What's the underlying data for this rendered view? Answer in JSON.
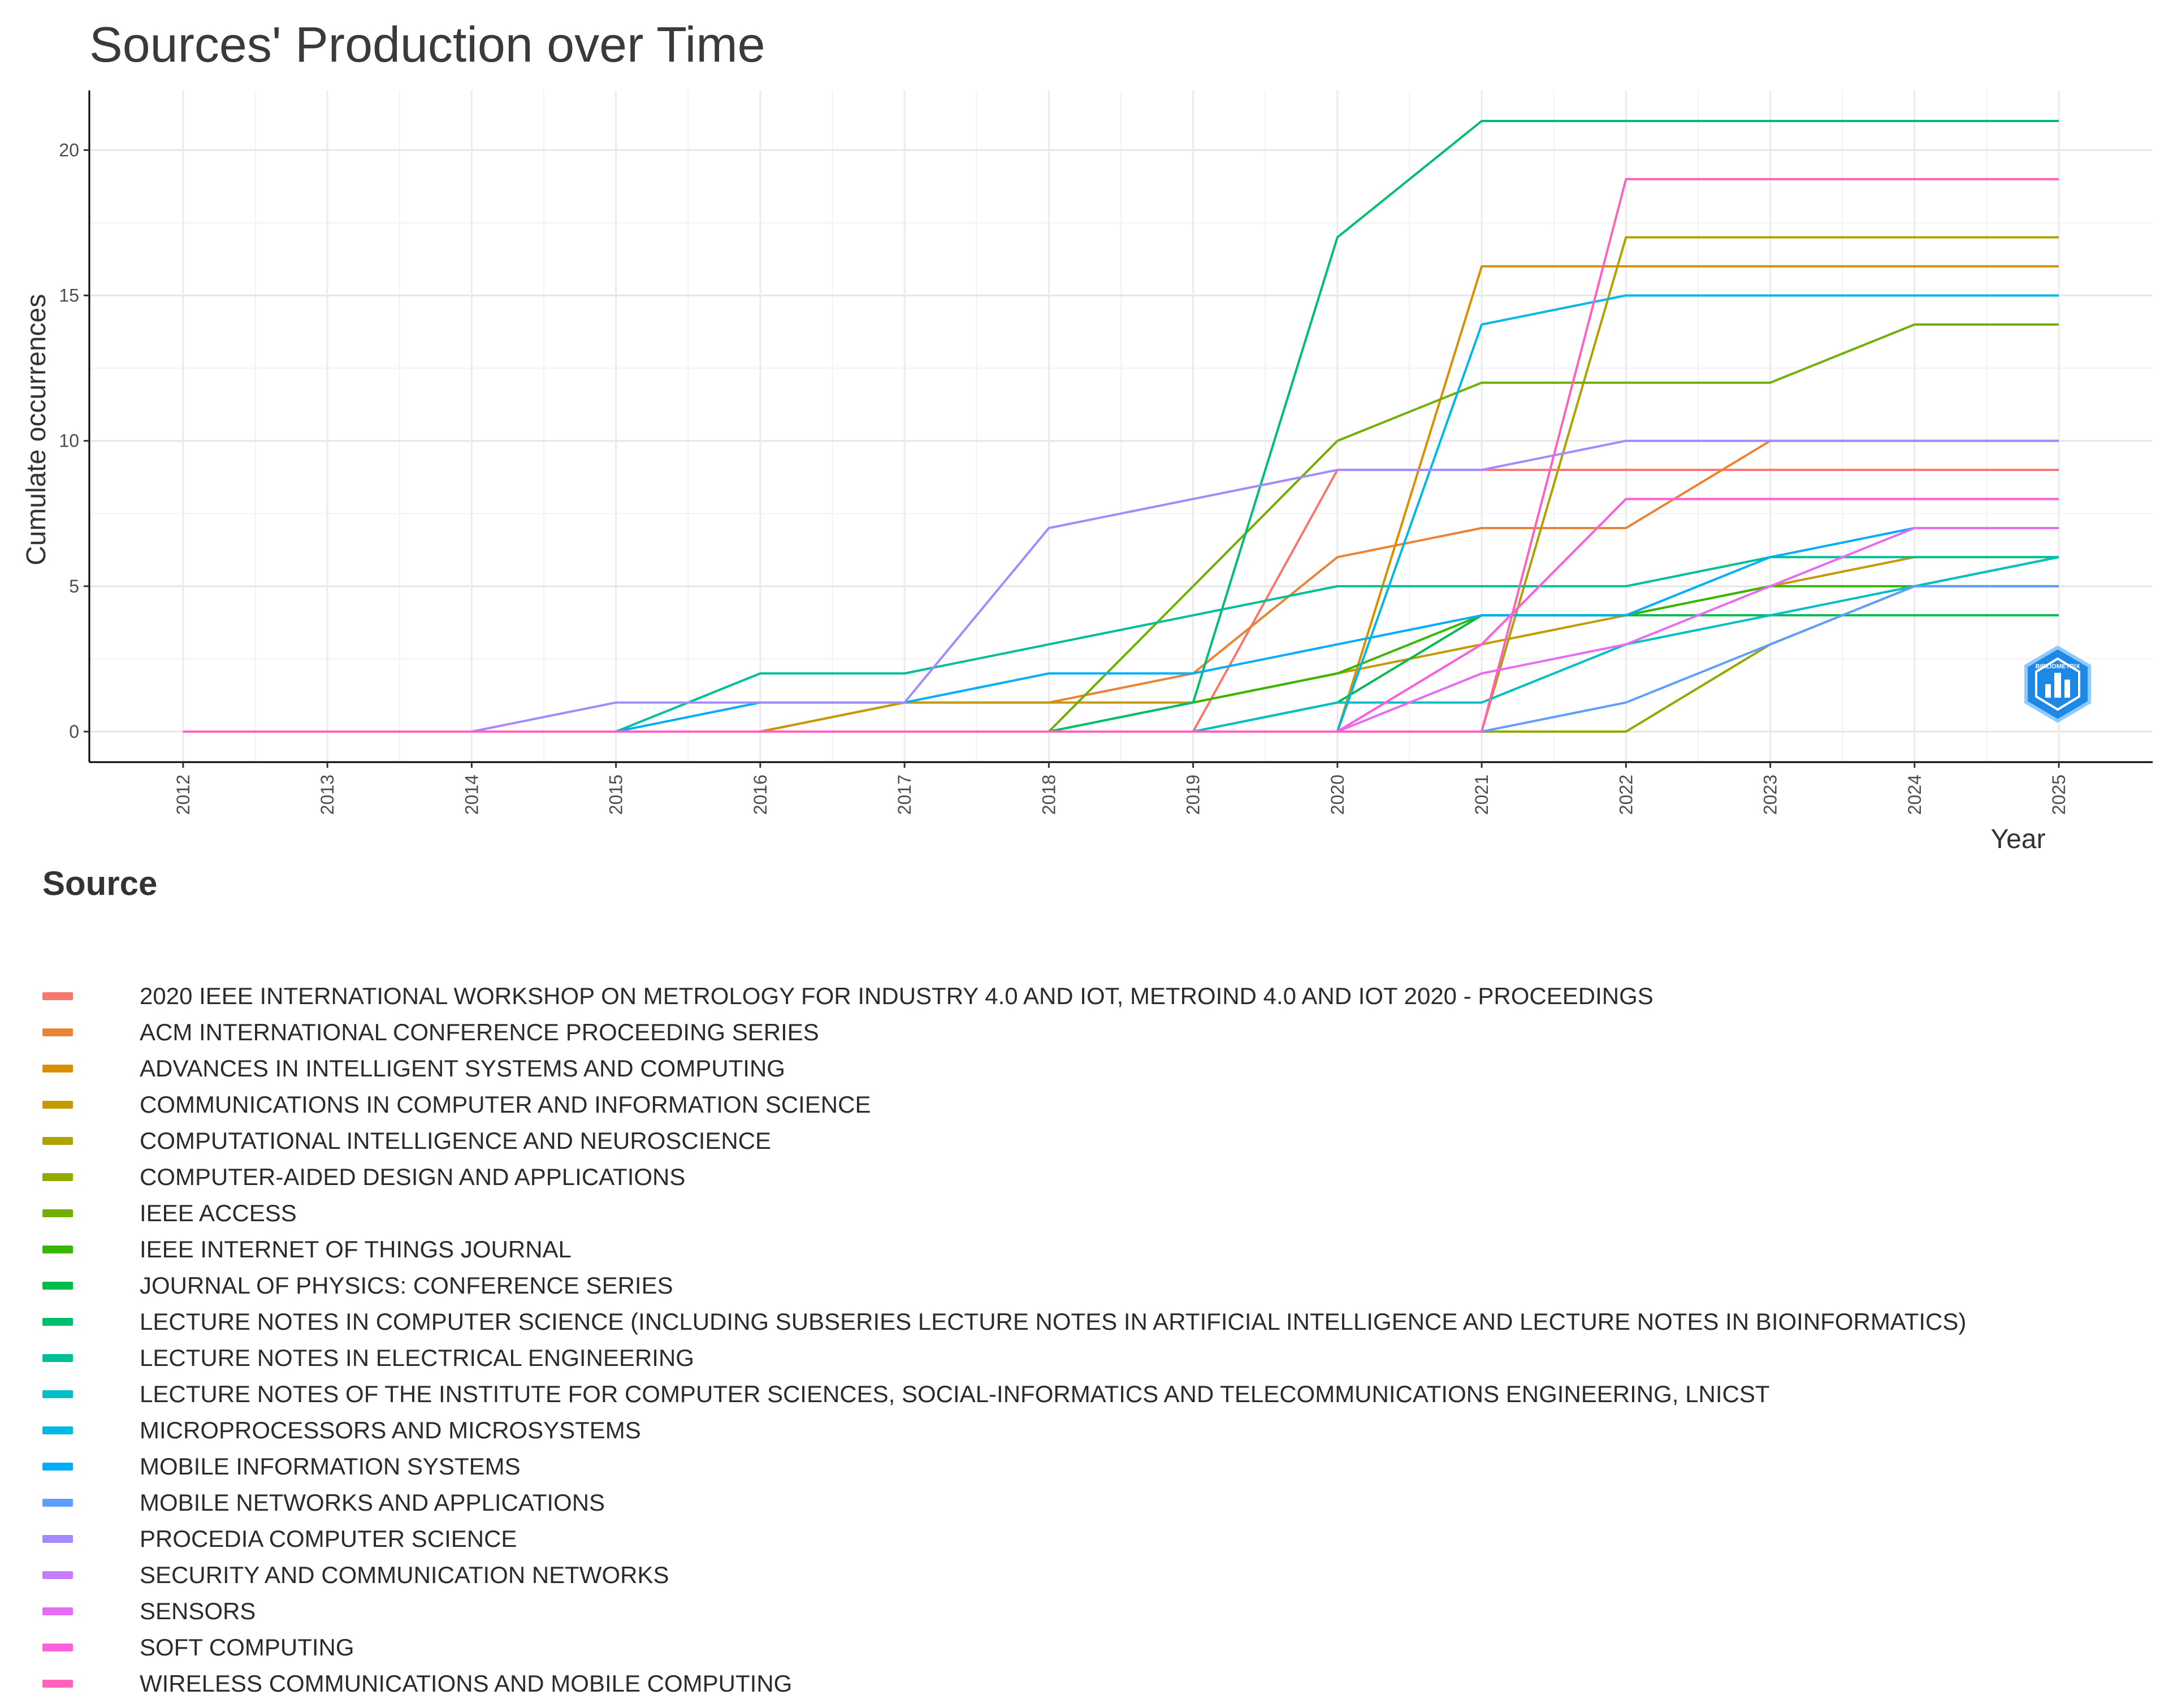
{
  "chart_data": {
    "type": "line",
    "title": "Sources' Production over Time",
    "xlabel": "Year",
    "ylabel": "Cumulate occurrences",
    "x": [
      2012,
      2013,
      2014,
      2015,
      2016,
      2017,
      2018,
      2019,
      2020,
      2021,
      2022,
      2023,
      2024,
      2025
    ],
    "xlim": [
      2011.35,
      2025.65
    ],
    "ylim": [
      -1.05,
      22.05
    ],
    "y_ticks": [
      0,
      5,
      10,
      15,
      20
    ],
    "grid": true,
    "legend_title": "Source",
    "legend_position": "bottom",
    "series": [
      {
        "name": "2020 IEEE INTERNATIONAL WORKSHOP ON METROLOGY FOR INDUSTRY 4.0 AND IOT, METROIND 4.0 AND IOT 2020 - PROCEEDINGS",
        "color": "#F8766D",
        "values": [
          0,
          0,
          0,
          0,
          0,
          0,
          0,
          0,
          9,
          9,
          9,
          9,
          9,
          9
        ]
      },
      {
        "name": "ACM INTERNATIONAL CONFERENCE PROCEEDING SERIES",
        "color": "#EB8335",
        "values": [
          0,
          0,
          0,
          0,
          0,
          1,
          1,
          2,
          6,
          7,
          7,
          10,
          10,
          10
        ]
      },
      {
        "name": "ADVANCES IN INTELLIGENT SYSTEMS AND COMPUTING",
        "color": "#DA8F00",
        "values": [
          0,
          0,
          0,
          0,
          0,
          0,
          0,
          0,
          0,
          16,
          16,
          16,
          16,
          16
        ]
      },
      {
        "name": "COMMUNICATIONS IN COMPUTER AND INFORMATION SCIENCE",
        "color": "#C59900",
        "values": [
          0,
          0,
          0,
          0,
          0,
          1,
          1,
          1,
          2,
          3,
          4,
          5,
          6,
          6
        ]
      },
      {
        "name": "COMPUTATIONAL INTELLIGENCE AND NEUROSCIENCE",
        "color": "#AEA200",
        "values": [
          0,
          0,
          0,
          0,
          0,
          0,
          0,
          0,
          0,
          0,
          17,
          17,
          17,
          17
        ]
      },
      {
        "name": "COMPUTER-AIDED DESIGN AND APPLICATIONS",
        "color": "#94A900",
        "values": [
          0,
          0,
          0,
          0,
          0,
          0,
          0,
          0,
          0,
          0,
          0,
          3,
          5,
          6
        ]
      },
      {
        "name": "IEEE ACCESS",
        "color": "#72B000",
        "values": [
          0,
          0,
          0,
          0,
          0,
          0,
          0,
          5,
          10,
          12,
          12,
          12,
          14,
          14
        ]
      },
      {
        "name": "IEEE INTERNET OF THINGS JOURNAL",
        "color": "#39B600",
        "values": [
          0,
          0,
          0,
          0,
          0,
          0,
          0,
          1,
          2,
          4,
          4,
          5,
          5,
          5
        ]
      },
      {
        "name": "JOURNAL OF PHYSICS: CONFERENCE SERIES",
        "color": "#00BB4E",
        "values": [
          0,
          0,
          0,
          0,
          0,
          0,
          0,
          0,
          1,
          4,
          4,
          4,
          4,
          4
        ]
      },
      {
        "name": "LECTURE NOTES IN COMPUTER SCIENCE (INCLUDING SUBSERIES LECTURE NOTES IN ARTIFICIAL INTELLIGENCE AND LECTURE NOTES IN BIOINFORMATICS)",
        "color": "#00BE70",
        "values": [
          0,
          0,
          0,
          0,
          0,
          0,
          0,
          1,
          17,
          21,
          21,
          21,
          21,
          21
        ]
      },
      {
        "name": "LECTURE NOTES IN ELECTRICAL ENGINEERING",
        "color": "#00BF96",
        "values": [
          0,
          0,
          0,
          0,
          2,
          2,
          3,
          4,
          5,
          5,
          5,
          6,
          6,
          6
        ]
      },
      {
        "name": "LECTURE NOTES OF THE INSTITUTE FOR COMPUTER SCIENCES, SOCIAL-INFORMATICS AND TELECOMMUNICATIONS ENGINEERING, LNICST",
        "color": "#00BFC4",
        "values": [
          0,
          0,
          0,
          0,
          0,
          0,
          0,
          0,
          1,
          1,
          3,
          4,
          5,
          6
        ]
      },
      {
        "name": "MICROPROCESSORS AND MICROSYSTEMS",
        "color": "#00B8E5",
        "values": [
          0,
          0,
          0,
          0,
          0,
          0,
          0,
          0,
          0,
          14,
          15,
          15,
          15,
          15
        ]
      },
      {
        "name": "MOBILE INFORMATION SYSTEMS",
        "color": "#00ADFA",
        "values": [
          0,
          0,
          0,
          0,
          1,
          1,
          2,
          2,
          3,
          4,
          4,
          6,
          7,
          7
        ]
      },
      {
        "name": "MOBILE NETWORKS AND APPLICATIONS",
        "color": "#619CFF",
        "values": [
          0,
          0,
          0,
          0,
          0,
          0,
          0,
          0,
          0,
          0,
          1,
          3,
          5,
          5
        ]
      },
      {
        "name": "PROCEDIA COMPUTER SCIENCE",
        "color": "#A58AFF",
        "values": [
          0,
          0,
          0,
          1,
          1,
          1,
          7,
          8,
          9,
          9,
          10,
          10,
          10,
          10
        ]
      },
      {
        "name": "SECURITY AND COMMUNICATION NETWORKS",
        "color": "#C77CFF",
        "values": [
          0,
          0,
          0,
          0,
          0,
          0,
          0,
          0,
          0,
          3,
          8,
          8,
          8,
          8
        ]
      },
      {
        "name": "SENSORS",
        "color": "#E76BF3",
        "values": [
          0,
          0,
          0,
          0,
          0,
          0,
          0,
          0,
          0,
          2,
          3,
          5,
          7,
          7
        ]
      },
      {
        "name": "SOFT COMPUTING",
        "color": "#FA62DB",
        "values": [
          0,
          0,
          0,
          0,
          0,
          0,
          0,
          0,
          0,
          3,
          8,
          8,
          8,
          8
        ]
      },
      {
        "name": "WIRELESS COMMUNICATIONS AND MOBILE COMPUTING",
        "color": "#FF62BC",
        "values": [
          0,
          0,
          0,
          0,
          0,
          0,
          0,
          0,
          0,
          0,
          19,
          19,
          19,
          19
        ]
      }
    ],
    "legend_key_colors": [
      "#F8766D",
      "#EB8335",
      "#DA8F00",
      "#C59900",
      "#AEA200",
      "#94A900",
      "#72B000",
      "#39B600",
      "#00BB4E",
      "#00BE70",
      "#00BF96",
      "#00BFC4",
      "#00B8E5",
      "#00ADFA",
      "#619CFF",
      "#A58AFF",
      "#C77CFF",
      "#E76BF3",
      "#FA62DB",
      "#FF62BC"
    ]
  },
  "logo": {
    "text": "BIBLIOMETRIX",
    "color": "#1E88E5"
  }
}
